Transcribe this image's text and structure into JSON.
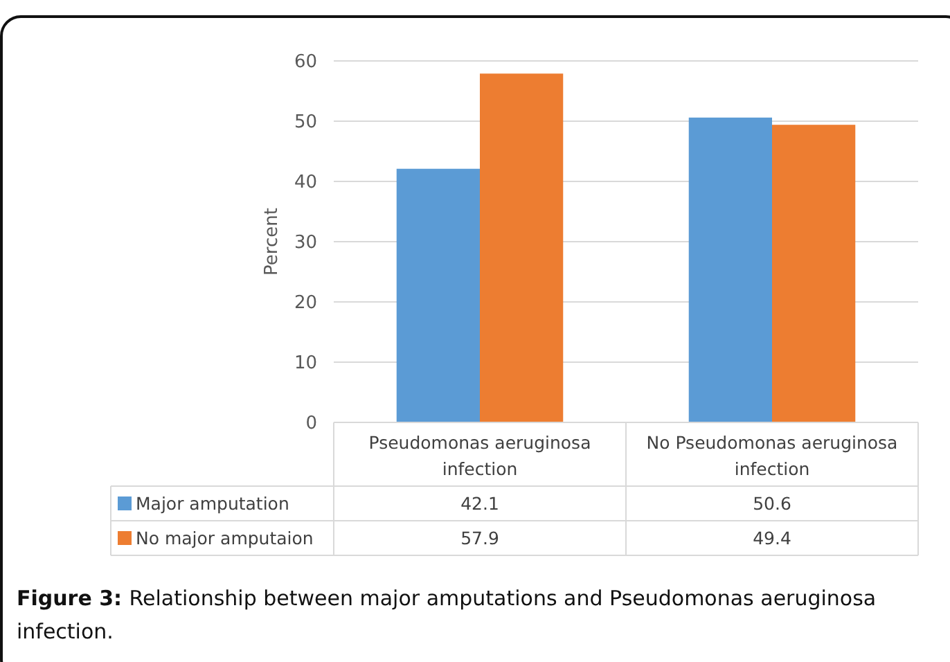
{
  "chart_data": {
    "type": "bar",
    "ylabel": "Percent",
    "categories": [
      "Pseudomonas aeruginosa infection",
      "No Pseudomonas aeruginosa infection"
    ],
    "series": [
      {
        "name": "Major amputation",
        "color": "#5b9bd5",
        "values": [
          42.1,
          50.6
        ]
      },
      {
        "name": "No major amputaion",
        "color": "#ed7d31",
        "values": [
          57.9,
          49.4
        ]
      }
    ],
    "ylim": [
      0,
      60
    ],
    "yticks": [
      0,
      10,
      20,
      30,
      40,
      50,
      60
    ],
    "grid": "y",
    "legend": "bottom",
    "data_labels": true,
    "annotations": [
      "Figure 3: Relationship between major amputations and Pseudomonas aeruginosa infection."
    ]
  }
}
